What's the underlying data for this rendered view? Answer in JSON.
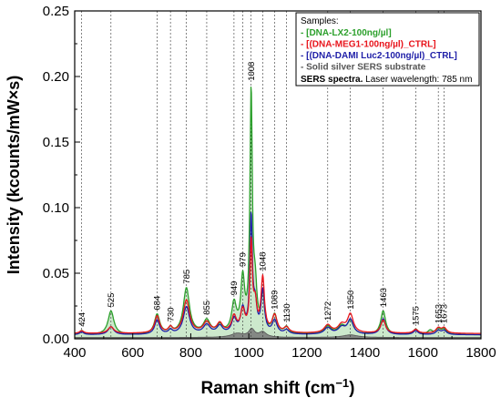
{
  "chart_data": {
    "type": "line",
    "xlabel": "Raman shift (cm",
    "xlabel_sup": "−1",
    "xlabel_end": ")",
    "ylabel": "Intensity (kcounts/mW×s)",
    "xlim": [
      400,
      1800
    ],
    "ylim": [
      0,
      0.25
    ],
    "xticks": [
      400,
      600,
      800,
      1000,
      1200,
      1400,
      1600,
      1800
    ],
    "yticks": [
      0.0,
      0.05,
      0.1,
      0.15,
      0.2,
      0.25
    ],
    "ytick_labels": [
      "0.00",
      "0.05",
      "0.10",
      "0.15",
      "0.20",
      "0.25"
    ],
    "grid": false,
    "peak_annotations": [
      {
        "x": 424,
        "label": "424"
      },
      {
        "x": 525,
        "label": "525"
      },
      {
        "x": 684,
        "label": "684"
      },
      {
        "x": 730,
        "label": "730"
      },
      {
        "x": 785,
        "label": "785"
      },
      {
        "x": 855,
        "label": "855"
      },
      {
        "x": 949,
        "label": "949"
      },
      {
        "x": 979,
        "label": "979"
      },
      {
        "x": 1008,
        "label": "1008"
      },
      {
        "x": 1048,
        "label": "1048"
      },
      {
        "x": 1089,
        "label": "1089"
      },
      {
        "x": 1130,
        "label": "1130"
      },
      {
        "x": 1272,
        "label": "1272"
      },
      {
        "x": 1350,
        "label": "1350"
      },
      {
        "x": 1463,
        "label": "1463"
      },
      {
        "x": 1575,
        "label": "1575"
      },
      {
        "x": 1653,
        "label": "1653"
      },
      {
        "x": 1673,
        "label": "1673"
      }
    ],
    "legend": {
      "placement": "top-right",
      "heading": "Samples:",
      "entries": [
        {
          "text": "- [DNA-LX2-100ng/µl]",
          "color": "#2ca02c"
        },
        {
          "text": "- [(DNA-MEG1-100ng/µl)_CTRL]",
          "color": "#e8141b"
        },
        {
          "text": "- [(DNA-DAMI Luc2-100ng/µl)_CTRL]",
          "color": "#1f1fa8"
        },
        {
          "text": "- Solid silver SERS substrate",
          "color": "#555555"
        }
      ],
      "note_bold": "SERS spectra.",
      "note_rest": " Laser wavelength: 785 nm"
    },
    "series": [
      {
        "name": "[DNA-LX2-100ng/µl]",
        "color": "#2ca02c",
        "fill": "#bfe3bf",
        "baseline": 0.003,
        "peaks": [
          [
            424,
            0.003,
            9
          ],
          [
            525,
            0.018,
            12
          ],
          [
            684,
            0.015,
            11
          ],
          [
            730,
            0.004,
            8
          ],
          [
            785,
            0.035,
            13
          ],
          [
            855,
            0.01,
            14
          ],
          [
            900,
            0.006,
            12
          ],
          [
            949,
            0.022,
            10
          ],
          [
            979,
            0.04,
            8
          ],
          [
            1008,
            0.18,
            5
          ],
          [
            1022,
            0.03,
            7
          ],
          [
            1048,
            0.028,
            7
          ],
          [
            1089,
            0.014,
            10
          ],
          [
            1130,
            0.005,
            10
          ],
          [
            1272,
            0.006,
            14
          ],
          [
            1320,
            0.006,
            15
          ],
          [
            1350,
            0.01,
            12
          ],
          [
            1463,
            0.018,
            10
          ],
          [
            1575,
            0.004,
            10
          ],
          [
            1625,
            0.003,
            10
          ],
          [
            1653,
            0.004,
            10
          ],
          [
            1673,
            0.004,
            10
          ]
        ]
      },
      {
        "name": "[(DNA-MEG1-100ng/µl)_CTRL]",
        "color": "#e8141b",
        "fill": "none",
        "baseline": 0.004,
        "peaks": [
          [
            424,
            0.002,
            9
          ],
          [
            525,
            0.005,
            12
          ],
          [
            684,
            0.013,
            10
          ],
          [
            730,
            0.004,
            8
          ],
          [
            785,
            0.025,
            13
          ],
          [
            855,
            0.008,
            14
          ],
          [
            900,
            0.007,
            12
          ],
          [
            949,
            0.012,
            10
          ],
          [
            979,
            0.016,
            9
          ],
          [
            1008,
            0.067,
            5
          ],
          [
            1022,
            0.02,
            7
          ],
          [
            1048,
            0.041,
            7
          ],
          [
            1089,
            0.013,
            10
          ],
          [
            1130,
            0.004,
            10
          ],
          [
            1272,
            0.006,
            14
          ],
          [
            1320,
            0.006,
            15
          ],
          [
            1350,
            0.014,
            12
          ],
          [
            1463,
            0.01,
            10
          ],
          [
            1575,
            0.003,
            10
          ],
          [
            1653,
            0.004,
            10
          ],
          [
            1673,
            0.004,
            10
          ]
        ]
      },
      {
        "name": "[(DNA-DAMI Luc2-100ng/µl)_CTRL]",
        "color": "#1f1fa8",
        "fill": "none",
        "baseline": 0.003,
        "peaks": [
          [
            424,
            0.002,
            9
          ],
          [
            525,
            0.006,
            12
          ],
          [
            684,
            0.011,
            10
          ],
          [
            730,
            0.003,
            8
          ],
          [
            785,
            0.021,
            13
          ],
          [
            855,
            0.007,
            14
          ],
          [
            900,
            0.006,
            12
          ],
          [
            949,
            0.011,
            10
          ],
          [
            979,
            0.018,
            9
          ],
          [
            1008,
            0.087,
            5
          ],
          [
            1022,
            0.02,
            7
          ],
          [
            1048,
            0.032,
            7
          ],
          [
            1089,
            0.01,
            10
          ],
          [
            1130,
            0.003,
            10
          ],
          [
            1272,
            0.005,
            14
          ],
          [
            1320,
            0.005,
            15
          ],
          [
            1350,
            0.011,
            12
          ],
          [
            1463,
            0.012,
            10
          ],
          [
            1575,
            0.003,
            10
          ],
          [
            1653,
            0.003,
            10
          ],
          [
            1673,
            0.003,
            10
          ]
        ]
      },
      {
        "name": "Solid silver SERS substrate",
        "color": "#555555",
        "fill": "#777777",
        "baseline": 0.001,
        "peaks": [
          [
            960,
            0.003,
            25
          ],
          [
            1010,
            0.006,
            12
          ],
          [
            1048,
            0.004,
            15
          ],
          [
            1350,
            0.002,
            30
          ]
        ]
      }
    ]
  }
}
